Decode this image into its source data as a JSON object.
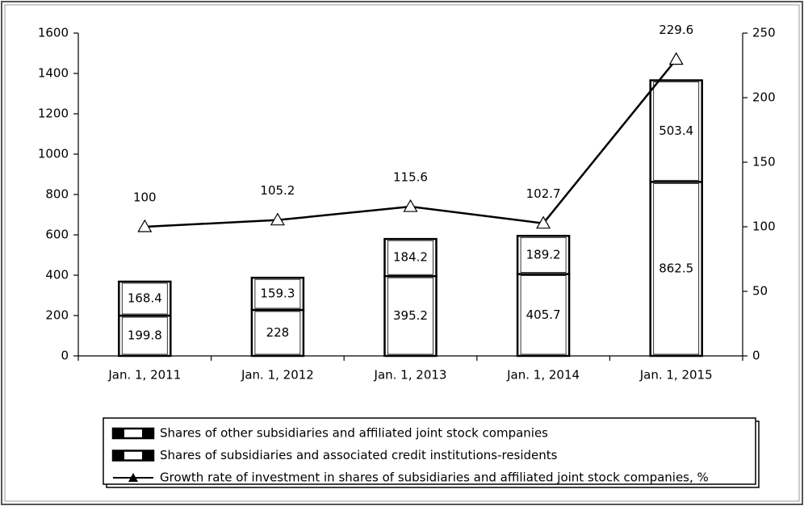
{
  "chart_data": {
    "type": "bar",
    "categories": [
      "Jan. 1, 2011",
      "Jan. 1, 2012",
      "Jan. 1, 2013",
      "Jan. 1, 2014",
      "Jan. 1, 2015"
    ],
    "series": [
      {
        "name": "Shares of other subsidiaries and affiliated joint stock companies",
        "color": "#ffffff",
        "values": [
          199.8,
          228,
          395.2,
          405.7,
          862.5
        ]
      },
      {
        "name": "Shares of subsidiaries and associated credit institutions-residents",
        "color": "#ffffff",
        "values": [
          168.4,
          159.3,
          184.2,
          189.2,
          503.4
        ]
      },
      {
        "name": "Growth rate of investment in shares of subsidiaries and affiliated joint stock companies, %",
        "color": "#000000",
        "type": "line",
        "axis": "y2",
        "values": [
          100,
          105.2,
          115.6,
          102.7,
          229.6
        ]
      }
    ],
    "stacked": true,
    "ylim": [
      0,
      1600
    ],
    "yticks": [
      0,
      200,
      400,
      600,
      800,
      1000,
      1200,
      1400,
      1600
    ],
    "y2lim": [
      0,
      250
    ],
    "y2ticks": [
      0,
      50,
      100,
      150,
      200,
      250
    ],
    "legend": "bottom"
  }
}
